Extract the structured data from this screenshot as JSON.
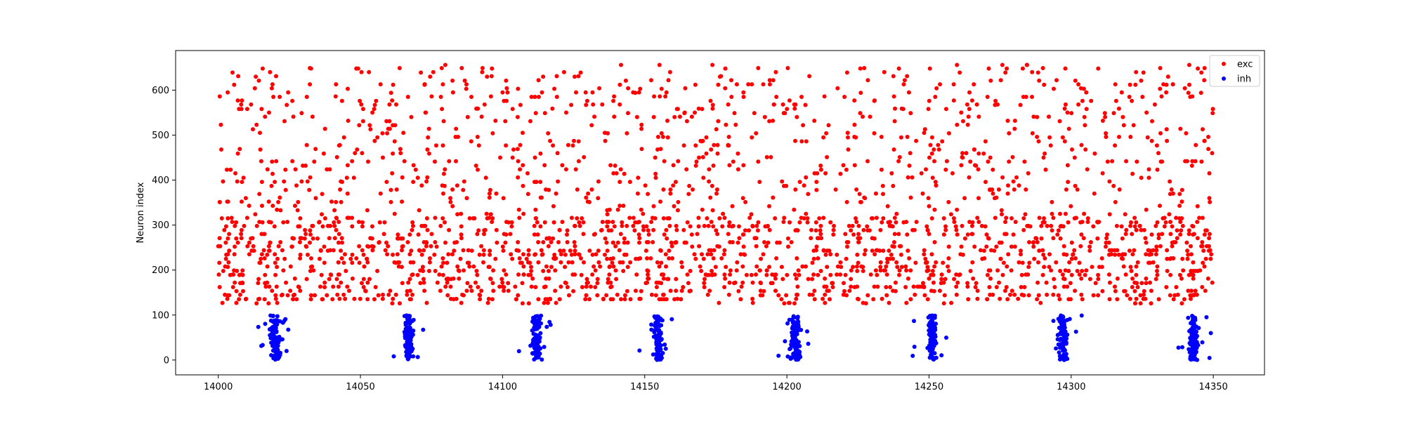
{
  "chart_data": {
    "type": "scatter",
    "title": "",
    "xlabel": "",
    "ylabel": "Neuron index",
    "xlim": [
      13985,
      14368
    ],
    "ylim": [
      -33,
      688
    ],
    "x_ticks": [
      14000,
      14050,
      14100,
      14150,
      14200,
      14250,
      14300,
      14350
    ],
    "y_ticks": [
      0,
      100,
      200,
      300,
      400,
      500,
      600
    ],
    "x_tick_labels": [
      "14000",
      "14050",
      "14100",
      "14150",
      "14200",
      "14250",
      "14300",
      "14350"
    ],
    "y_tick_labels": [
      "0",
      "100",
      "200",
      "300",
      "400",
      "500",
      "600"
    ],
    "grid": false,
    "legend": {
      "position": "top-right"
    },
    "series": [
      {
        "name": "exc",
        "color": "#ff0000",
        "marker": "dot",
        "x_range": [
          14000,
          14350
        ],
        "neuron_index_range": [
          127,
          656
        ],
        "description": "dense irregular excitatory spikes across the full time window"
      },
      {
        "name": "inh",
        "color": "#0000ff",
        "marker": "dot",
        "neuron_index_range": [
          0,
          99
        ],
        "burst_centers": [
          14020,
          14067,
          14112,
          14155,
          14203,
          14251,
          14297,
          14343
        ],
        "description": "synchronous inhibitory bursts"
      }
    ]
  }
}
